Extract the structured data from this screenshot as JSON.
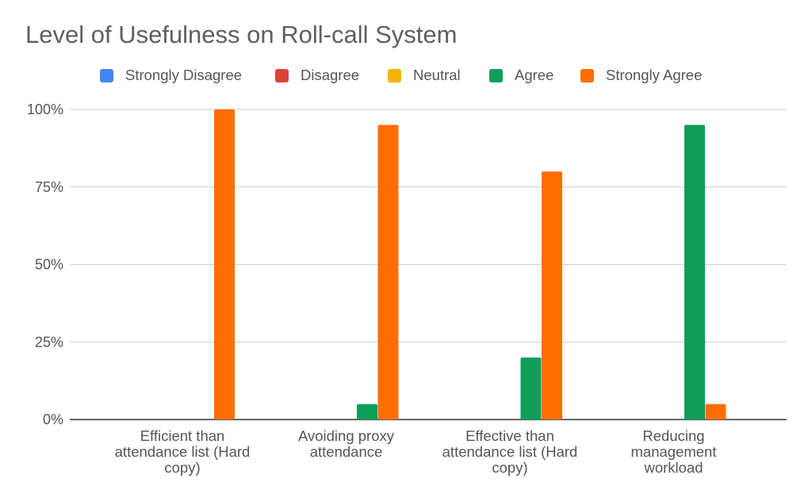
{
  "chart_data": {
    "type": "bar",
    "title": "Level of Usefulness on Roll-call System",
    "xlabel": "",
    "ylabel": "",
    "ylim": [
      0,
      100
    ],
    "y_ticks": [
      "0%",
      "25%",
      "50%",
      "75%",
      "100%"
    ],
    "y_tick_values": [
      0,
      25,
      50,
      75,
      100
    ],
    "grid": true,
    "legend_position": "top",
    "categories": [
      "Efficient than attendance list (Hard copy)",
      "Avoiding proxy attendance",
      "Effective than attendance list (Hard copy)",
      "Reducing management workload"
    ],
    "series": [
      {
        "name": "Strongly Disagree",
        "color": "#4285f4",
        "values": [
          0,
          0,
          0,
          0
        ]
      },
      {
        "name": "Disagree",
        "color": "#db4437",
        "values": [
          0,
          0,
          0,
          0
        ]
      },
      {
        "name": "Neutral",
        "color": "#f4b400",
        "values": [
          0,
          0,
          0,
          0
        ]
      },
      {
        "name": "Agree",
        "color": "#0f9d58",
        "values": [
          0,
          5,
          20,
          95
        ]
      },
      {
        "name": "Strongly Agree",
        "color": "#ff6d01",
        "values": [
          100,
          95,
          80,
          5
        ]
      }
    ]
  }
}
